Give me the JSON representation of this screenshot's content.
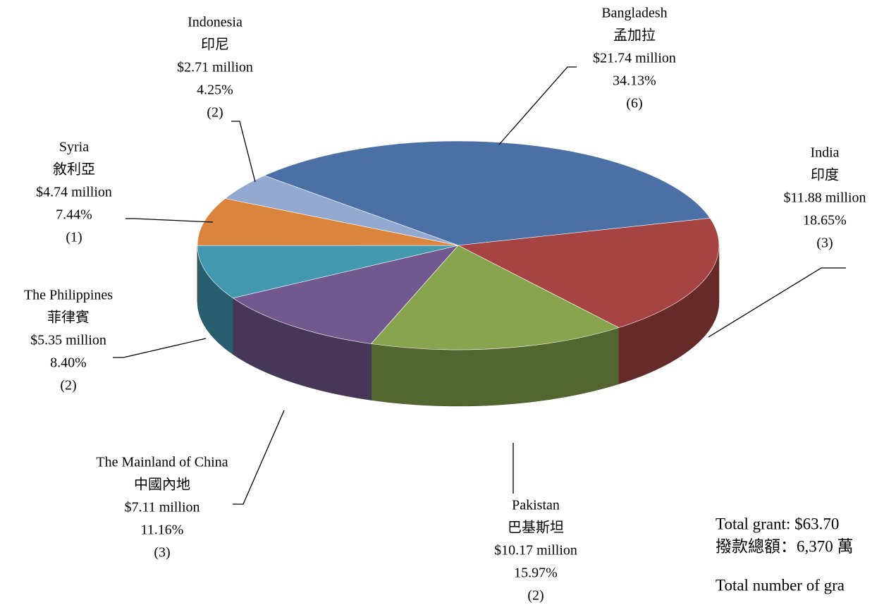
{
  "chart_data": {
    "type": "pie",
    "categories": [
      "Bangladesh",
      "India",
      "Pakistan",
      "The Mainland of China",
      "The Philippines",
      "Syria",
      "Indonesia"
    ],
    "categories_zh": [
      "孟加拉",
      "印度",
      "巴基斯坦",
      "中國內地",
      "菲律賓",
      "敘利亞",
      "印尼"
    ],
    "values": [
      34.13,
      18.65,
      15.97,
      11.16,
      8.4,
      7.44,
      4.25
    ],
    "value_labels": [
      "34.13%",
      "18.65%",
      "15.97%",
      "11.16%",
      "8.40%",
      "7.44%",
      "4.25%"
    ],
    "amounts": [
      21.74,
      11.88,
      10.17,
      7.11,
      5.35,
      4.74,
      2.71
    ],
    "amount_labels": [
      "$21.74 million",
      "$11.88 million",
      "$10.17 million",
      "$7.11 million",
      "$5.35 million",
      "$4.74 million",
      "$2.71 million"
    ],
    "grants": [
      6,
      3,
      2,
      3,
      2,
      1,
      2
    ],
    "grant_labels": [
      "(6)",
      "(3)",
      "(2)",
      "(3)",
      "(2)",
      "(1)",
      "(2)"
    ],
    "colors": [
      "#4a70a6",
      "#a54442",
      "#88a44e",
      "#71588f",
      "#4198af",
      "#db843d",
      "#93a9cf"
    ],
    "notes": [
      "Total grant: $63.70",
      "撥款總額：6,370 萬",
      "Total number of gra"
    ]
  }
}
